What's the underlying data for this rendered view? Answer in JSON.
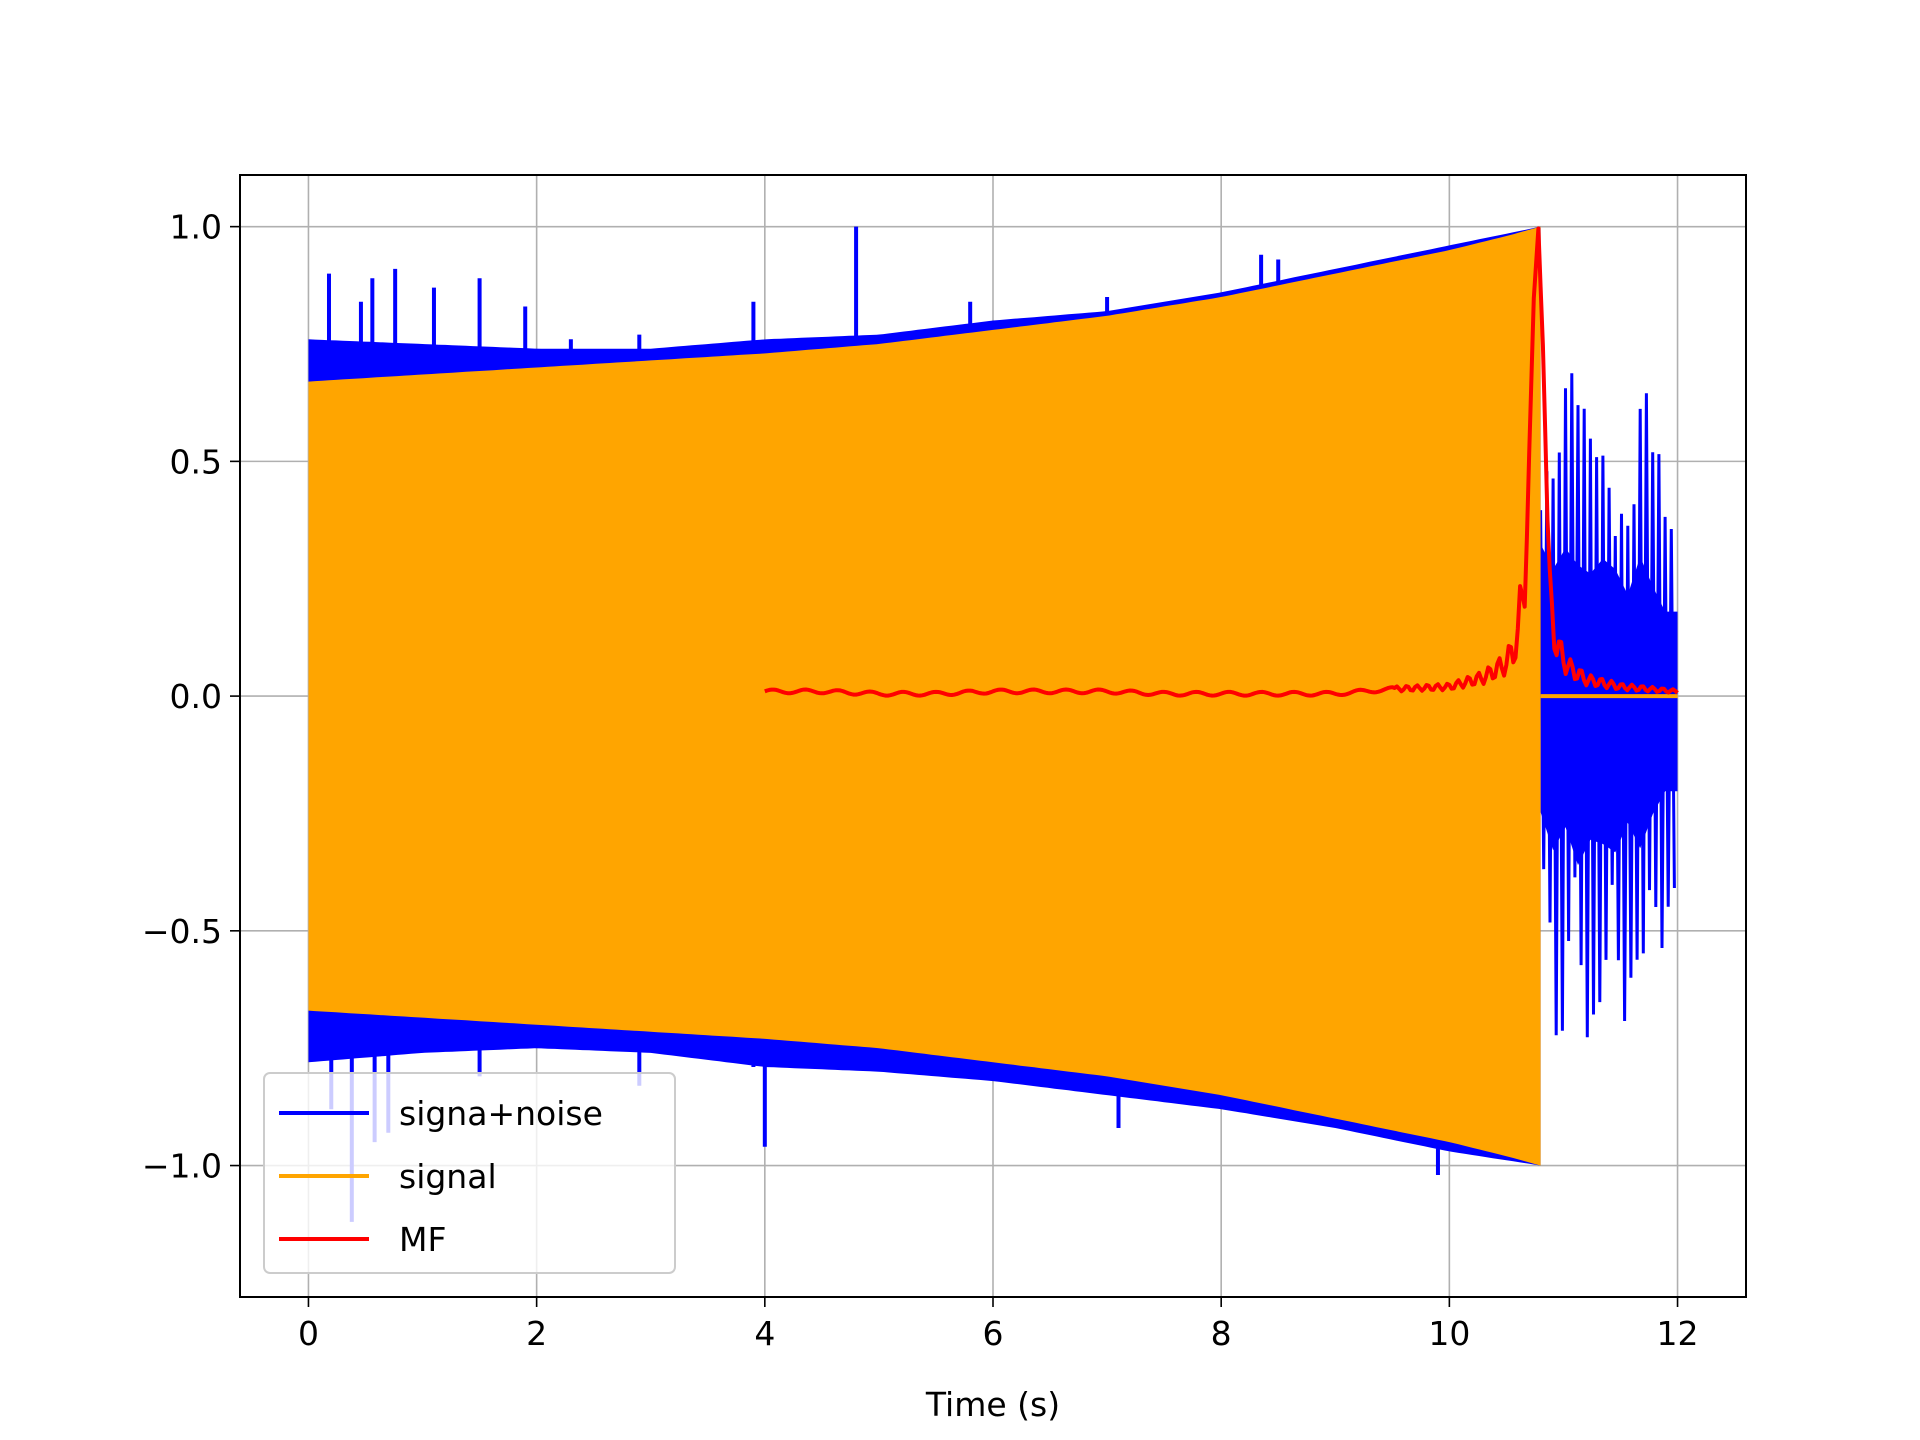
{
  "chart_data": {
    "type": "line",
    "title": "",
    "xlabel": "Time (s)",
    "ylabel": "",
    "xlim": [
      -0.6,
      12.6
    ],
    "ylim": [
      -1.28,
      1.11
    ],
    "x_ticks": [
      0,
      2,
      4,
      6,
      8,
      10,
      12
    ],
    "x_tick_labels": [
      "0",
      "2",
      "4",
      "6",
      "8",
      "10",
      "12"
    ],
    "y_ticks": [
      1.0,
      0.5,
      0.0,
      -0.5,
      -1.0
    ],
    "y_tick_labels": [
      "1.0",
      "0.5",
      "0.0",
      "−0.5",
      "−1.0"
    ],
    "grid": true,
    "legend_position": "lower-left",
    "series": [
      {
        "name": "signa+noise",
        "color": "#0000ff",
        "envelope": {
          "x": [
            0,
            1,
            2,
            3,
            4,
            5,
            6,
            7,
            8,
            9,
            10,
            10.8
          ],
          "upper": [
            0.76,
            0.75,
            0.74,
            0.74,
            0.76,
            0.77,
            0.8,
            0.82,
            0.86,
            0.91,
            0.96,
            1.0
          ],
          "lower": [
            -0.78,
            -0.76,
            -0.75,
            -0.76,
            -0.79,
            -0.8,
            -0.82,
            -0.85,
            -0.88,
            -0.92,
            -0.97,
            -1.0
          ]
        },
        "spikes": [
          {
            "x": 0.18,
            "y": 0.9
          },
          {
            "x": 0.3,
            "y": 0.74
          },
          {
            "x": 0.46,
            "y": 0.84
          },
          {
            "x": 0.56,
            "y": 0.89
          },
          {
            "x": 0.76,
            "y": 0.91
          },
          {
            "x": 1.1,
            "y": 0.87
          },
          {
            "x": 1.5,
            "y": 0.89
          },
          {
            "x": 1.9,
            "y": 0.83
          },
          {
            "x": 2.3,
            "y": 0.76
          },
          {
            "x": 2.9,
            "y": 0.77
          },
          {
            "x": 3.9,
            "y": 0.84
          },
          {
            "x": 4.8,
            "y": 1.0
          },
          {
            "x": 5.8,
            "y": 0.84
          },
          {
            "x": 7.0,
            "y": 0.85
          },
          {
            "x": 7.9,
            "y": 0.84
          },
          {
            "x": 8.35,
            "y": 0.94
          },
          {
            "x": 8.5,
            "y": 0.93
          },
          {
            "x": 0.2,
            "y": -0.88
          },
          {
            "x": 0.38,
            "y": -1.12
          },
          {
            "x": 0.58,
            "y": -0.95
          },
          {
            "x": 0.7,
            "y": -0.93
          },
          {
            "x": 1.1,
            "y": -0.72
          },
          {
            "x": 1.5,
            "y": -0.81
          },
          {
            "x": 2.9,
            "y": -0.83
          },
          {
            "x": 3.9,
            "y": -0.79
          },
          {
            "x": 4.0,
            "y": -0.96
          },
          {
            "x": 4.8,
            "y": -0.78
          },
          {
            "x": 5.8,
            "y": -0.81
          },
          {
            "x": 7.1,
            "y": -0.92
          },
          {
            "x": 8.35,
            "y": -0.88
          },
          {
            "x": 9.9,
            "y": -1.02
          }
        ],
        "noise_tail": {
          "x_start": 10.8,
          "x_end": 12.0,
          "max_y": [
            0.72,
            0.6,
            0.7,
            0.62,
            0.58,
            0.65,
            0.6,
            0.48,
            0.66,
            0.52,
            0.4
          ],
          "min_y": [
            -0.55,
            -0.73,
            -0.62,
            -0.8,
            -0.68,
            -0.7,
            -0.74,
            -0.6,
            -0.72,
            -0.56,
            -0.45
          ]
        }
      },
      {
        "name": "signal",
        "color": "#ffa500",
        "envelope": {
          "x": [
            0,
            1,
            2,
            3,
            4,
            5,
            6,
            7,
            8,
            9,
            10,
            10.5,
            10.8
          ],
          "upper": [
            0.67,
            0.685,
            0.7,
            0.715,
            0.73,
            0.75,
            0.78,
            0.81,
            0.85,
            0.9,
            0.95,
            0.98,
            1.0
          ],
          "lower": [
            -0.67,
            -0.685,
            -0.7,
            -0.715,
            -0.73,
            -0.75,
            -0.78,
            -0.81,
            -0.85,
            -0.9,
            -0.95,
            -0.98,
            -1.0
          ]
        },
        "after_end": {
          "x_start": 10.8,
          "x_end": 12.0,
          "y": 0.0
        }
      },
      {
        "name": "MF",
        "color": "#ff0000",
        "x": [
          4.0,
          4.5,
          5.0,
          5.5,
          6.0,
          6.5,
          7.0,
          7.5,
          8.0,
          8.5,
          9.0,
          9.5,
          10.0,
          10.3,
          10.5,
          10.6,
          10.68,
          10.74,
          10.78,
          10.82,
          10.88,
          10.95,
          11.05,
          11.2,
          11.5,
          12.0
        ],
        "values": [
          0.01,
          0.01,
          0.005,
          0.005,
          0.01,
          0.01,
          0.01,
          0.005,
          0.005,
          0.005,
          0.005,
          0.015,
          0.02,
          0.04,
          0.07,
          0.12,
          0.35,
          0.85,
          1.0,
          0.75,
          0.2,
          0.1,
          0.06,
          0.035,
          0.02,
          0.01
        ]
      }
    ]
  }
}
